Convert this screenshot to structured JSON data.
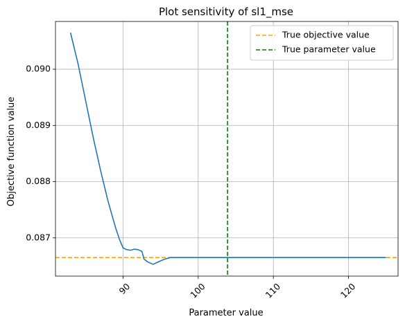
{
  "chart_data": {
    "type": "line",
    "title": "Plot sensitivity of sl1_mse",
    "xlabel": "Parameter value",
    "ylabel": "Objective function value",
    "xlim": [
      81.0,
      126.6
    ],
    "ylim": [
      0.08632,
      0.09085
    ],
    "xticks": [
      90,
      100,
      110,
      120
    ],
    "yticks": [
      0.087,
      0.088,
      0.089,
      0.09
    ],
    "xtick_labels": [
      "90",
      "100",
      "110",
      "120"
    ],
    "ytick_labels": [
      "0.087",
      "0.088",
      "0.089",
      "0.090"
    ],
    "xtick_rotation_deg": 45,
    "grid": true,
    "legend_position": "top-right",
    "series": [
      {
        "color": "#1f77b4",
        "linestyle": "solid",
        "x": [
          83.0,
          84.0,
          85.0,
          86.0,
          87.0,
          88.0,
          89.0,
          89.5,
          90.0,
          90.5,
          91.0,
          91.5,
          92.0,
          92.5,
          92.8,
          93.3,
          94.0,
          94.8,
          95.5,
          96.3,
          97.5,
          100,
          105,
          110,
          115,
          120,
          125
        ],
        "y": [
          0.09065,
          0.0901,
          0.08945,
          0.0888,
          0.0882,
          0.08765,
          0.08718,
          0.08698,
          0.08682,
          0.08679,
          0.08678,
          0.0868,
          0.08679,
          0.08676,
          0.08662,
          0.08657,
          0.08653,
          0.08658,
          0.08662,
          0.08665,
          0.08665,
          0.08665,
          0.08665,
          0.08665,
          0.08665,
          0.08665,
          0.08665
        ]
      }
    ],
    "reference_lines": [
      {
        "orientation": "horizontal",
        "value": 0.08665,
        "color": "#ffa500",
        "linestyle": "dashed",
        "label": "True objective value"
      },
      {
        "orientation": "vertical",
        "value": 103.9,
        "color": "#008000",
        "linestyle": "dashed",
        "label": "True parameter value"
      }
    ],
    "legend": [
      "True objective value",
      "True parameter value"
    ]
  }
}
